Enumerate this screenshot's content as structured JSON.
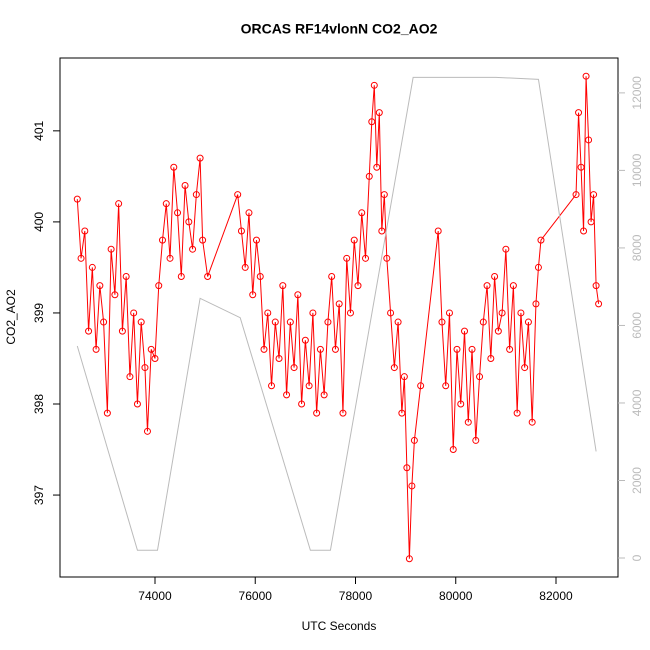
{
  "chart_data": {
    "type": "line",
    "title": "ORCAS RF14vlonN CO2_AO2",
    "xlabel": "UTC Seconds",
    "ylabel": "CO2_AO2",
    "xlim": [
      72105,
      83237
    ],
    "xticks": [
      74000,
      76000,
      78000,
      80000,
      82000
    ],
    "ylim": [
      396.1,
      401.8
    ],
    "yticks": [
      397,
      398,
      399,
      400,
      401
    ],
    "y2lim": [
      -490,
      12900
    ],
    "y2ticks": [
      0,
      2000,
      4000,
      6000,
      8000,
      10000,
      12000
    ],
    "series": [
      {
        "color": "#ff0000",
        "markers": true,
        "x": [
          72450,
          72525,
          72600,
          72675,
          72750,
          72825,
          72900,
          72975,
          73050,
          73125,
          73200,
          73275,
          73350,
          73425,
          73500,
          73575,
          73650,
          73725,
          73800,
          73850,
          73925,
          74000,
          74075,
          74150,
          74225,
          74300,
          74375,
          74450,
          74525,
          74600,
          74675,
          74750,
          74825,
          74900,
          74950,
          75050,
          75650,
          75725,
          75800,
          75875,
          75950,
          76025,
          76100,
          76175,
          76250,
          76325,
          76400,
          76475,
          76550,
          76625,
          76700,
          76775,
          76850,
          76925,
          77000,
          77075,
          77150,
          77225,
          77300,
          77375,
          77450,
          77525,
          77600,
          77675,
          77750,
          77825,
          77900,
          77975,
          78050,
          78125,
          78200,
          78275,
          78325,
          78375,
          78425,
          78475,
          78525,
          78575,
          78625,
          78700,
          78775,
          78850,
          78925,
          78975,
          79025,
          79075,
          79125,
          79175,
          79300,
          79650,
          79725,
          79800,
          79875,
          79950,
          80025,
          80100,
          80175,
          80250,
          80325,
          80400,
          80475,
          80550,
          80625,
          80700,
          80775,
          80850,
          80925,
          81000,
          81075,
          81150,
          81225,
          81300,
          81375,
          81450,
          81525,
          81600,
          81650,
          81700,
          82400,
          82450,
          82500,
          82550,
          82600,
          82650,
          82700,
          82750,
          82800,
          82850
        ],
        "values": [
          400.25,
          399.6,
          399.9,
          398.8,
          399.5,
          398.6,
          399.3,
          398.9,
          397.9,
          399.7,
          399.2,
          400.2,
          398.8,
          399.4,
          398.3,
          399.0,
          398.0,
          398.9,
          398.4,
          397.7,
          398.6,
          398.5,
          399.3,
          399.8,
          400.2,
          399.6,
          400.6,
          400.1,
          399.4,
          400.4,
          400.0,
          399.7,
          400.3,
          400.7,
          399.8,
          399.4,
          400.3,
          399.9,
          399.5,
          400.1,
          399.2,
          399.8,
          399.4,
          398.6,
          399.0,
          398.2,
          398.9,
          398.5,
          399.3,
          398.1,
          398.9,
          398.4,
          399.2,
          398.0,
          398.7,
          398.2,
          399.0,
          397.9,
          398.6,
          398.1,
          398.9,
          399.4,
          398.6,
          399.1,
          397.9,
          399.6,
          399.0,
          399.8,
          399.3,
          400.1,
          399.6,
          400.5,
          401.1,
          401.5,
          400.6,
          401.2,
          399.9,
          400.3,
          399.6,
          399.0,
          398.4,
          398.9,
          397.9,
          398.3,
          397.3,
          396.3,
          397.1,
          397.6,
          398.2,
          399.9,
          398.9,
          398.2,
          399.0,
          397.5,
          398.6,
          398.0,
          398.8,
          397.8,
          398.6,
          397.6,
          398.3,
          398.9,
          399.3,
          398.5,
          399.4,
          398.8,
          399.0,
          399.7,
          398.6,
          399.3,
          397.9,
          399.0,
          398.4,
          398.9,
          397.8,
          399.1,
          399.5,
          399.8,
          400.3,
          401.2,
          400.6,
          399.9,
          401.6,
          400.9,
          400.0,
          400.3,
          399.3,
          399.1
        ]
      },
      {
        "color": "#bbbbbb",
        "axis": "y2",
        "markers": false,
        "x": [
          72450,
          73650,
          74050,
          74900,
          75700,
          77100,
          77500,
          79150,
          80800,
          81650,
          82800
        ],
        "values": [
          5470,
          200,
          200,
          6700,
          6200,
          200,
          200,
          12400,
          12400,
          12350,
          2750
        ]
      }
    ]
  }
}
